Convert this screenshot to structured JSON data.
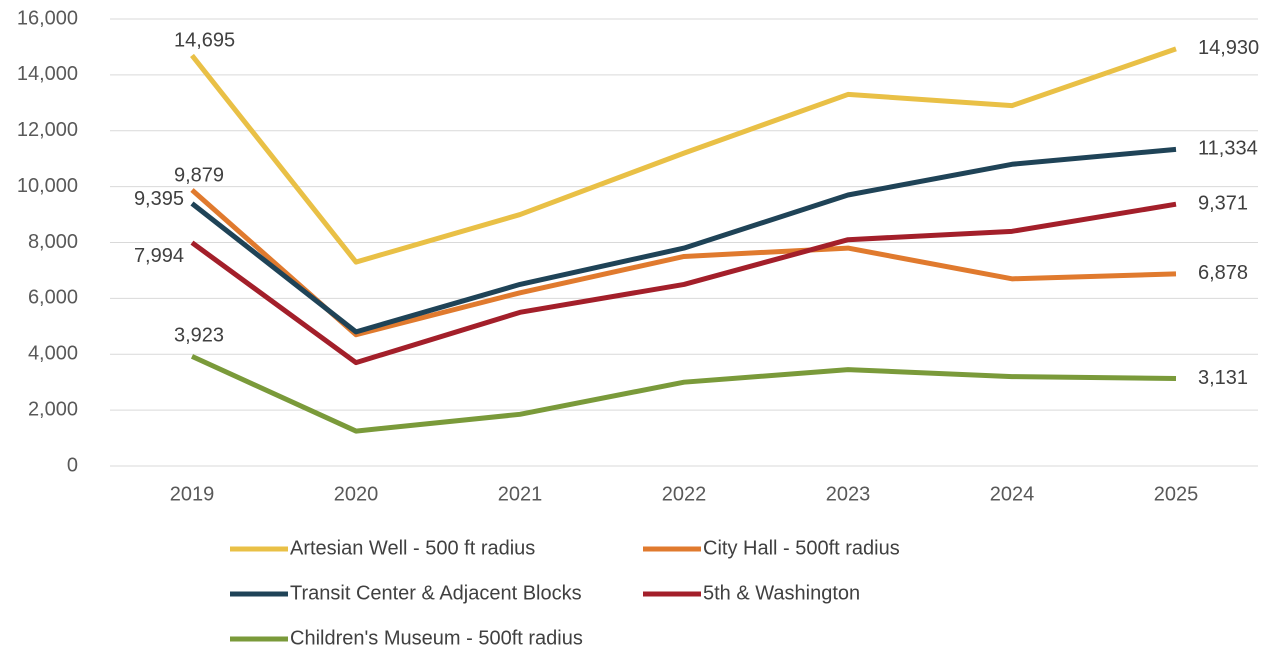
{
  "chart_data": {
    "type": "line",
    "categories": [
      "2019",
      "2020",
      "2021",
      "2022",
      "2023",
      "2024",
      "2025"
    ],
    "series": [
      {
        "name": "Artesian Well - 500 ft radius",
        "color": "#e9c046",
        "values": [
          14695,
          7300,
          9000,
          11200,
          13300,
          12900,
          14930
        ],
        "value_labels": [
          "14,695",
          null,
          null,
          null,
          null,
          null,
          "14,930"
        ]
      },
      {
        "name": "City Hall - 500ft radius",
        "color": "#e07a2e",
        "values": [
          9879,
          4700,
          6200,
          7500,
          7800,
          6700,
          6878
        ],
        "value_labels": [
          "9,879",
          null,
          null,
          null,
          null,
          null,
          "6,878"
        ]
      },
      {
        "name": "Transit Center & Adjacent Blocks",
        "color": "#1f4357",
        "values": [
          9395,
          4800,
          6500,
          7800,
          9700,
          10800,
          11334
        ],
        "value_labels": [
          "9,395",
          null,
          null,
          null,
          null,
          null,
          "11,334"
        ]
      },
      {
        "name": "5th & Washington",
        "color": "#a31f2a",
        "values": [
          7994,
          3700,
          5500,
          6500,
          8100,
          8400,
          9371
        ],
        "value_labels": [
          "7,994",
          null,
          null,
          null,
          null,
          null,
          "9,371"
        ]
      },
      {
        "name": "Children's Museum - 500ft radius",
        "color": "#7a9a3a",
        "values": [
          3923,
          1250,
          1850,
          3000,
          3450,
          3200,
          3131
        ],
        "value_labels": [
          "3,923",
          null,
          null,
          null,
          null,
          null,
          "3,131"
        ]
      }
    ],
    "ylim": [
      0,
      16000
    ],
    "yticks": [
      0,
      {
        "value": 2000,
        "label": "2,000"
      },
      {
        "value": 4000,
        "label": "4,000"
      },
      {
        "value": 6000,
        "label": "6,000"
      },
      {
        "value": 8000,
        "label": "8,000"
      },
      {
        "value": 10000,
        "label": "10,000"
      },
      {
        "value": 12000,
        "label": "12,000"
      },
      {
        "value": 14000,
        "label": "14,000"
      },
      {
        "value": 16000,
        "label": "16,000"
      }
    ],
    "grid": true
  }
}
